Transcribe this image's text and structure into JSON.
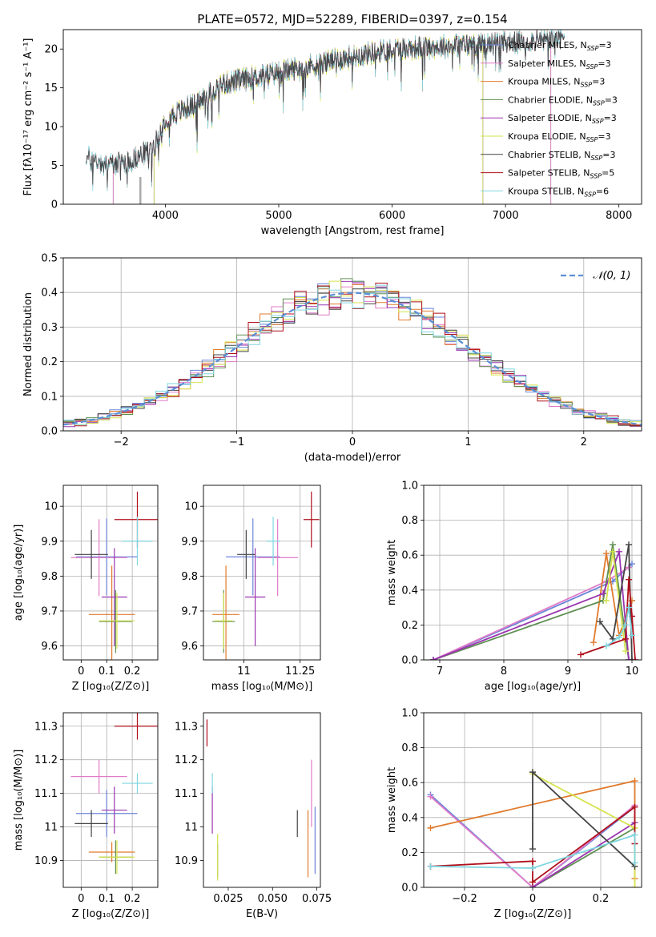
{
  "figure": {
    "title": "PLATE=0572, MJD=52289, FIBERID=0397, z=0.154",
    "colors": {
      "Chabrier MILES": "#6a84d8",
      "Salpeter MILES": "#e07bc8",
      "Kroupa MILES": "#e07a2c",
      "Chabrier ELODIE": "#5f8f52",
      "Salpeter ELODIE": "#9a35b0",
      "Kroupa ELODIE": "#d6e34f",
      "Chabrier STELIB": "#444444",
      "Salpeter STELIB": "#b0101c",
      "Kroupa STELIB": "#7fd6e0"
    }
  },
  "chart_data": [
    {
      "id": "spectrum",
      "type": "line",
      "xlabel": "wavelength [Angstrom, rest frame]",
      "ylabel": "Flux [fλ10⁻¹⁷ erg cm⁻² s⁻¹ A⁻¹]",
      "xlim": [
        3100,
        8200
      ],
      "ylim": [
        0,
        22.5
      ],
      "xticks": [
        4000,
        5000,
        6000,
        7000,
        8000
      ],
      "yticks": [
        0,
        5,
        10,
        15,
        20
      ],
      "grid": false,
      "legend_position": "top-right",
      "legend": [
        "Chabrier MILES, N_SSP=3",
        "Salpeter MILES, N_SSP=3",
        "Kroupa MILES, N_SSP=3",
        "Chabrier ELODIE, N_SSP=3",
        "Salpeter ELODIE, N_SSP=3",
        "Kroupa ELODIE, N_SSP=3",
        "Chabrier STELIB, N_SSP=3",
        "Salpeter STELIB, N_SSP=5",
        "Kroupa STELIB, N_SSP=6"
      ],
      "continuum": [
        [
          3300,
          6.0
        ],
        [
          3500,
          5.2
        ],
        [
          3700,
          5.6
        ],
        [
          3900,
          7.4
        ],
        [
          4000,
          11.0
        ],
        [
          4300,
          13.2
        ],
        [
          4500,
          15.5
        ],
        [
          5000,
          17.0
        ],
        [
          5500,
          18.6
        ],
        [
          6000,
          20.0
        ],
        [
          6500,
          20.4
        ],
        [
          7000,
          20.8
        ],
        [
          7500,
          21.3
        ]
      ],
      "data_range": [
        3300,
        7520
      ],
      "model_ranges": {
        "MILES": [
          3540,
          7400
        ],
        "ELODIE": [
          3900,
          6800
        ],
        "STELIB": [
          3300,
          7520
        ]
      }
    },
    {
      "id": "residuals",
      "type": "bar",
      "xlabel": "(data-model)/error",
      "ylabel": "Normed distribution",
      "xlim": [
        -2.5,
        2.5
      ],
      "ylim": [
        0,
        0.5
      ],
      "xticks": [
        -2,
        -1,
        0,
        1,
        2
      ],
      "yticks": [
        0.0,
        0.1,
        0.2,
        0.3,
        0.4,
        0.5
      ],
      "grid": true,
      "legend_position": "top-right",
      "legend": [
        "𝒩(0, 1)"
      ],
      "bin_width": 0.1
    },
    {
      "id": "age-vs-Z",
      "type": "scatter",
      "xlabel": "Z [log₁₀(Z/Z⊙)]",
      "ylabel": "age  [log₁₀(age/yr)]",
      "xlim": [
        -0.07,
        0.3
      ],
      "ylim": [
        9.56,
        10.06
      ],
      "xticks": [
        0.0,
        0.1,
        0.2
      ],
      "yticks": [
        9.6,
        9.7,
        9.8,
        9.9,
        10.0
      ],
      "grid": true,
      "points": [
        {
          "model": "Chabrier MILES",
          "x": 0.1,
          "y": 9.855,
          "xerr": 0.12,
          "yerr": 0.11
        },
        {
          "model": "Salpeter MILES",
          "x": 0.07,
          "y": 9.853,
          "xerr": 0.11,
          "yerr": 0.11
        },
        {
          "model": "Kroupa MILES",
          "x": 0.12,
          "y": 9.69,
          "xerr": 0.09,
          "yerr": 0.14
        },
        {
          "model": "Chabrier ELODIE",
          "x": 0.135,
          "y": 9.67,
          "xerr": 0.065,
          "yerr": 0.09
        },
        {
          "model": "Salpeter ELODIE",
          "x": 0.13,
          "y": 9.74,
          "xerr": 0.05,
          "yerr": 0.14
        },
        {
          "model": "Kroupa ELODIE",
          "x": 0.14,
          "y": 9.672,
          "xerr": 0.07,
          "yerr": 0.08
        },
        {
          "model": "Chabrier STELIB",
          "x": 0.04,
          "y": 9.862,
          "xerr": 0.065,
          "yerr": 0.07
        },
        {
          "model": "Salpeter STELIB",
          "x": 0.22,
          "y": 9.962,
          "xerr": 0.09,
          "yerr": 0.08
        },
        {
          "model": "Kroupa STELIB",
          "x": 0.22,
          "y": 9.9,
          "xerr": 0.06,
          "yerr": 0.07
        }
      ]
    },
    {
      "id": "age-vs-mass",
      "type": "scatter",
      "xlabel": "mass [log₁₀(M/M⊙)]",
      "ylabel": "",
      "xlim": [
        10.82,
        11.34
      ],
      "ylim": [
        9.56,
        10.06
      ],
      "xticks": [
        11.0,
        11.25
      ],
      "yticks": [
        9.6,
        9.7,
        9.8,
        9.9,
        10.0
      ],
      "grid": true,
      "points": [
        {
          "model": "Chabrier MILES",
          "x": 11.04,
          "y": 9.855,
          "xerr": 0.12,
          "yerr": 0.11
        },
        {
          "model": "Salpeter MILES",
          "x": 11.15,
          "y": 9.853,
          "xerr": 0.09,
          "yerr": 0.11
        },
        {
          "model": "Kroupa MILES",
          "x": 10.92,
          "y": 9.69,
          "xerr": 0.06,
          "yerr": 0.14
        },
        {
          "model": "Chabrier ELODIE",
          "x": 10.91,
          "y": 9.67,
          "xerr": 0.05,
          "yerr": 0.09
        },
        {
          "model": "Salpeter ELODIE",
          "x": 11.05,
          "y": 9.74,
          "xerr": 0.045,
          "yerr": 0.14
        },
        {
          "model": "Kroupa ELODIE",
          "x": 10.91,
          "y": 9.672,
          "xerr": 0.04,
          "yerr": 0.08
        },
        {
          "model": "Chabrier STELIB",
          "x": 11.01,
          "y": 9.862,
          "xerr": 0.04,
          "yerr": 0.07
        },
        {
          "model": "Salpeter STELIB",
          "x": 11.3,
          "y": 9.962,
          "xerr": 0.035,
          "yerr": 0.08
        },
        {
          "model": "Kroupa STELIB",
          "x": 11.13,
          "y": 9.9,
          "xerr": 0.03,
          "yerr": 0.07
        }
      ]
    },
    {
      "id": "mass-weight-vs-age",
      "type": "line",
      "xlabel": "age  [log₁₀(age/yr)]",
      "ylabel": "mass weight",
      "xlim": [
        6.75,
        10.15
      ],
      "ylim": [
        0,
        1.0
      ],
      "xticks": [
        7,
        8,
        9,
        10
      ],
      "yticks": [
        0.0,
        0.2,
        0.4,
        0.6,
        0.8,
        1.0
      ],
      "grid": true,
      "series": [
        {
          "model": "Chabrier MILES",
          "points": [
            [
              6.9,
              0.0
            ],
            [
              9.7,
              0.45
            ],
            [
              10.0,
              0.55
            ]
          ]
        },
        {
          "model": "Salpeter MILES",
          "points": [
            [
              6.9,
              0.0
            ],
            [
              9.6,
              0.45
            ],
            [
              9.95,
              0.53
            ]
          ]
        },
        {
          "model": "Kroupa MILES",
          "points": [
            [
              9.4,
              0.1
            ],
            [
              9.6,
              0.61
            ],
            [
              9.8,
              0.14
            ],
            [
              10.0,
              0.34
            ]
          ]
        },
        {
          "model": "Chabrier ELODIE",
          "points": [
            [
              6.9,
              0.0
            ],
            [
              9.55,
              0.34
            ],
            [
              9.7,
              0.66
            ],
            [
              9.95,
              0.0
            ]
          ]
        },
        {
          "model": "Salpeter ELODIE",
          "points": [
            [
              6.9,
              0.0
            ],
            [
              9.55,
              0.38
            ],
            [
              9.8,
              0.62
            ],
            [
              9.95,
              0.0
            ]
          ]
        },
        {
          "model": "Kroupa ELODIE",
          "points": [
            [
              9.6,
              0.34
            ],
            [
              9.7,
              0.62
            ],
            [
              9.9,
              0.05
            ]
          ]
        },
        {
          "model": "Chabrier STELIB",
          "points": [
            [
              9.5,
              0.22
            ],
            [
              9.7,
              0.12
            ],
            [
              9.95,
              0.66
            ],
            [
              10.0,
              0.0
            ]
          ]
        },
        {
          "model": "Salpeter STELIB",
          "points": [
            [
              9.2,
              0.03
            ],
            [
              9.9,
              0.12
            ],
            [
              9.95,
              0.46
            ],
            [
              10.0,
              0.25
            ],
            [
              10.05,
              0.0
            ]
          ]
        },
        {
          "model": "Kroupa STELIB",
          "points": [
            [
              9.6,
              0.08
            ],
            [
              9.8,
              0.13
            ],
            [
              9.9,
              0.2
            ],
            [
              9.95,
              0.3
            ],
            [
              10.0,
              0.14
            ]
          ]
        }
      ]
    },
    {
      "id": "mass-vs-Z",
      "type": "scatter",
      "xlabel": "Z [log₁₀(Z/Z⊙)]",
      "ylabel": "mass [log₁₀(M/M⊙)]",
      "xlim": [
        -0.07,
        0.3
      ],
      "ylim": [
        10.82,
        11.34
      ],
      "xticks": [
        0.0,
        0.1,
        0.2
      ],
      "yticks": [
        10.9,
        11.0,
        11.1,
        11.2,
        11.3
      ],
      "grid": true,
      "points": [
        {
          "model": "Chabrier MILES",
          "x": 0.1,
          "y": 11.04,
          "xerr": 0.12,
          "yerr": 0.07
        },
        {
          "model": "Salpeter MILES",
          "x": 0.07,
          "y": 11.15,
          "xerr": 0.11,
          "yerr": 0.05
        },
        {
          "model": "Kroupa MILES",
          "x": 0.12,
          "y": 10.925,
          "xerr": 0.09,
          "yerr": 0.03
        },
        {
          "model": "Chabrier ELODIE",
          "x": 0.135,
          "y": 10.91,
          "xerr": 0.065,
          "yerr": 0.05
        },
        {
          "model": "Salpeter ELODIE",
          "x": 0.13,
          "y": 11.05,
          "xerr": 0.05,
          "yerr": 0.07
        },
        {
          "model": "Kroupa ELODIE",
          "x": 0.14,
          "y": 10.91,
          "xerr": 0.07,
          "yerr": 0.05
        },
        {
          "model": "Chabrier STELIB",
          "x": 0.04,
          "y": 11.01,
          "xerr": 0.065,
          "yerr": 0.04
        },
        {
          "model": "Salpeter STELIB",
          "x": 0.22,
          "y": 11.3,
          "xerr": 0.09,
          "yerr": 0.04
        },
        {
          "model": "Kroupa STELIB",
          "x": 0.22,
          "y": 11.13,
          "xerr": 0.06,
          "yerr": 0.03
        }
      ]
    },
    {
      "id": "mass-vs-EBV",
      "type": "scatter",
      "xlabel": "E(B-V)",
      "ylabel": "",
      "xlim": [
        0.011,
        0.077
      ],
      "ylim": [
        10.82,
        11.34
      ],
      "xticks": [
        0.025,
        0.05,
        0.075
      ],
      "xticklabels": [
        "0.025",
        "0.050",
        "0.075"
      ],
      "yticks": [
        10.9,
        11.0,
        11.1,
        11.2,
        11.3
      ],
      "grid": false,
      "points": [
        {
          "model": "Chabrier MILES",
          "x": 0.074,
          "y": 10.96,
          "yerr": 0.1
        },
        {
          "model": "Salpeter MILES",
          "x": 0.072,
          "y": 11.1,
          "yerr": 0.1
        },
        {
          "model": "Kroupa MILES",
          "x": 0.07,
          "y": 10.95,
          "yerr": 0.1
        },
        {
          "model": "Chabrier ELODIE",
          "x": 0.019,
          "y": 10.9,
          "yerr": 0.05
        },
        {
          "model": "Salpeter ELODIE",
          "x": 0.016,
          "y": 11.05,
          "yerr": 0.07
        },
        {
          "model": "Kroupa ELODIE",
          "x": 0.019,
          "y": 10.91,
          "yerr": 0.07
        },
        {
          "model": "Chabrier STELIB",
          "x": 0.064,
          "y": 11.01,
          "yerr": 0.04
        },
        {
          "model": "Salpeter STELIB",
          "x": 0.013,
          "y": 11.28,
          "yerr": 0.04
        },
        {
          "model": "Kroupa STELIB",
          "x": 0.016,
          "y": 11.13,
          "yerr": 0.03
        }
      ]
    },
    {
      "id": "mass-weight-vs-Z",
      "type": "line",
      "xlabel": "Z [log₁₀(Z/Z⊙)]",
      "ylabel": "mass weight",
      "xlim": [
        -0.32,
        0.32
      ],
      "ylim": [
        0,
        1.0
      ],
      "xticks": [
        -0.2,
        0.0,
        0.2
      ],
      "yticks": [
        0.0,
        0.2,
        0.4,
        0.6,
        0.8,
        1.0
      ],
      "grid": true,
      "series": [
        {
          "model": "Chabrier MILES",
          "points": [
            [
              -0.3,
              0.53
            ],
            [
              0.0,
              0.0
            ],
            [
              0.3,
              0.46
            ]
          ]
        },
        {
          "model": "Salpeter MILES",
          "points": [
            [
              -0.3,
              0.52
            ],
            [
              0.0,
              0.0
            ],
            [
              0.3,
              0.47
            ]
          ]
        },
        {
          "model": "Kroupa MILES",
          "points": [
            [
              -0.3,
              0.34
            ],
            [
              0.3,
              0.61
            ],
            [
              0.3,
              0.05
            ]
          ]
        },
        {
          "model": "Chabrier ELODIE",
          "points": [
            [
              0.0,
              0.0
            ],
            [
              0.3,
              0.34
            ]
          ]
        },
        {
          "model": "Salpeter ELODIE",
          "points": [
            [
              0.0,
              0.0
            ],
            [
              0.3,
              0.37
            ]
          ]
        },
        {
          "model": "Kroupa ELODIE",
          "points": [
            [
              0.0,
              0.65
            ],
            [
              0.3,
              0.34
            ],
            [
              0.3,
              0.0
            ]
          ]
        },
        {
          "model": "Chabrier STELIB",
          "points": [
            [
              0.0,
              0.22
            ],
            [
              0.0,
              0.66
            ],
            [
              0.3,
              0.12
            ]
          ]
        },
        {
          "model": "Salpeter STELIB",
          "points": [
            [
              -0.3,
              0.12
            ],
            [
              0.0,
              0.15
            ],
            [
              0.0,
              0.03
            ],
            [
              0.3,
              0.46
            ],
            [
              0.3,
              0.25
            ]
          ]
        },
        {
          "model": "Kroupa STELIB",
          "points": [
            [
              -0.3,
              0.12
            ],
            [
              0.0,
              0.11
            ],
            [
              0.3,
              0.3
            ],
            [
              0.3,
              0.14
            ]
          ]
        }
      ]
    }
  ]
}
